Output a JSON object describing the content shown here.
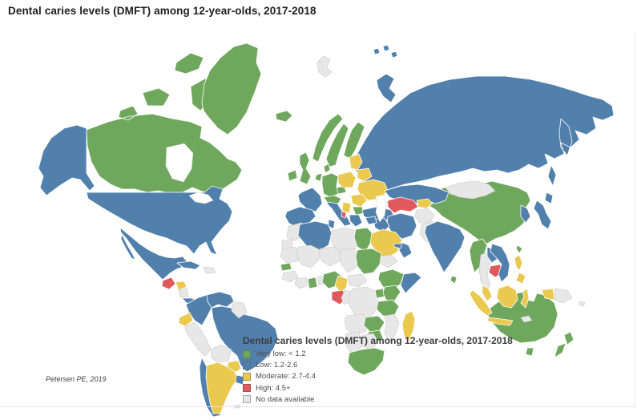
{
  "title": "Dental caries levels (DMFT) among 12-year-olds, 2017-2018",
  "attribution": "Petersen PE, 2019",
  "legend": {
    "title": "Dental caries levels (DMFT) among 12-year-olds, 2017-2018",
    "items": [
      {
        "id": "very_low",
        "label": "Very low: < 1.2",
        "color": "#6FA85C"
      },
      {
        "id": "low",
        "label": "Low: 1.2-2.6",
        "color": "#5280AC"
      },
      {
        "id": "moderate",
        "label": "Moderate: 2.7-4.4",
        "color": "#EAC94E"
      },
      {
        "id": "high",
        "label": "High: 4.5+",
        "color": "#E0575C"
      },
      {
        "id": "no_data",
        "label": "No data available",
        "color": "#E7E7E7"
      }
    ]
  },
  "map": {
    "ocean_color": "#FFFFFF",
    "regions": [
      {
        "id": "russia",
        "name": "Russia",
        "category": "low"
      },
      {
        "id": "canada",
        "name": "Canada",
        "category": "very_low"
      },
      {
        "id": "greenland",
        "name": "Greenland",
        "category": "very_low"
      },
      {
        "id": "usa",
        "name": "United States",
        "category": "low"
      },
      {
        "id": "china",
        "name": "China",
        "category": "very_low"
      },
      {
        "id": "brazil",
        "name": "Brazil",
        "category": "low"
      },
      {
        "id": "australia",
        "name": "Australia",
        "category": "very_low"
      },
      {
        "id": "mexico",
        "name": "Mexico",
        "category": "low"
      },
      {
        "id": "guatemala",
        "name": "Guatemala",
        "category": "high"
      },
      {
        "id": "honduras",
        "name": "Honduras",
        "category": "moderate"
      },
      {
        "id": "nicaragua",
        "name": "Nicaragua",
        "category": "no_data"
      },
      {
        "id": "panama-costa-rica",
        "name": "Costa Rica / Panama",
        "category": "low"
      },
      {
        "id": "cuba",
        "name": "Cuba",
        "category": "low"
      },
      {
        "id": "hispaniola",
        "name": "Haiti / Dominican Republic",
        "category": "no_data"
      },
      {
        "id": "colombia",
        "name": "Colombia",
        "category": "low"
      },
      {
        "id": "venezuela",
        "name": "Venezuela",
        "category": "low"
      },
      {
        "id": "guyanas",
        "name": "Guyana / Suriname",
        "category": "no_data"
      },
      {
        "id": "ecuador",
        "name": "Ecuador",
        "category": "moderate"
      },
      {
        "id": "peru",
        "name": "Peru",
        "category": "no_data"
      },
      {
        "id": "bolivia",
        "name": "Bolivia",
        "category": "no_data"
      },
      {
        "id": "paraguay",
        "name": "Paraguay",
        "category": "moderate"
      },
      {
        "id": "chile",
        "name": "Chile",
        "category": "low"
      },
      {
        "id": "argentina",
        "name": "Argentina",
        "category": "moderate"
      },
      {
        "id": "uruguay",
        "name": "Uruguay",
        "category": "low"
      },
      {
        "id": "falkland",
        "name": "Falkland Islands",
        "category": "no_data"
      },
      {
        "id": "iceland",
        "name": "Iceland",
        "category": "very_low"
      },
      {
        "id": "ireland",
        "name": "Ireland",
        "category": "very_low"
      },
      {
        "id": "uk",
        "name": "United Kingdom",
        "category": "very_low"
      },
      {
        "id": "norway",
        "name": "Norway",
        "category": "very_low"
      },
      {
        "id": "sweden",
        "name": "Sweden",
        "category": "very_low"
      },
      {
        "id": "finland",
        "name": "Finland",
        "category": "very_low"
      },
      {
        "id": "denmark",
        "name": "Denmark",
        "category": "very_low"
      },
      {
        "id": "germany",
        "name": "Germany",
        "category": "very_low"
      },
      {
        "id": "benelux",
        "name": "Netherlands / Belgium",
        "category": "very_low"
      },
      {
        "id": "france",
        "name": "France",
        "category": "low"
      },
      {
        "id": "iberia",
        "name": "Spain / Portugal",
        "category": "low"
      },
      {
        "id": "italy",
        "name": "Italy",
        "category": "low"
      },
      {
        "id": "swiss-austria",
        "name": "Switzerland / Austria",
        "category": "very_low"
      },
      {
        "id": "czechia",
        "name": "Czechia",
        "category": "very_low"
      },
      {
        "id": "poland",
        "name": "Poland",
        "category": "moderate"
      },
      {
        "id": "baltics",
        "name": "Baltic States",
        "category": "moderate"
      },
      {
        "id": "belarus",
        "name": "Belarus",
        "category": "moderate"
      },
      {
        "id": "ukraine",
        "name": "Ukraine",
        "category": "moderate"
      },
      {
        "id": "romania",
        "name": "Romania / Moldova",
        "category": "moderate"
      },
      {
        "id": "balkans",
        "name": "Hungary / Serbia",
        "category": "moderate"
      },
      {
        "id": "bulgaria",
        "name": "Bulgaria",
        "category": "very_low"
      },
      {
        "id": "albania",
        "name": "Albania",
        "category": "high"
      },
      {
        "id": "greece",
        "name": "Greece",
        "category": "low"
      },
      {
        "id": "turkey",
        "name": "Turkey",
        "category": "low"
      },
      {
        "id": "caucasus",
        "name": "Georgia / Armenia",
        "category": "very_low"
      },
      {
        "id": "svalbard",
        "name": "Svalbard",
        "category": "no_data"
      },
      {
        "id": "kazakhstan",
        "name": "Kazakhstan",
        "category": "low"
      },
      {
        "id": "uzbek-turkmen",
        "name": "Turkmenistan / Uzbekistan",
        "category": "high"
      },
      {
        "id": "kyrgyz-tajik",
        "name": "Kyrgyzstan / Tajikistan",
        "category": "moderate"
      },
      {
        "id": "iran",
        "name": "Iran",
        "category": "low"
      },
      {
        "id": "afghanistan",
        "name": "Afghanistan",
        "category": "no_data"
      },
      {
        "id": "pakistan",
        "name": "Pakistan",
        "category": "no_data"
      },
      {
        "id": "iraq",
        "name": "Iraq",
        "category": "low"
      },
      {
        "id": "syria",
        "name": "Syria",
        "category": "low"
      },
      {
        "id": "saudi",
        "name": "Saudi Arabia",
        "category": "moderate"
      },
      {
        "id": "yemen",
        "name": "Yemen",
        "category": "no_data"
      },
      {
        "id": "oman",
        "name": "Oman",
        "category": "low"
      },
      {
        "id": "uae",
        "name": "United Arab Emirates",
        "category": "low"
      },
      {
        "id": "morocco",
        "name": "Morocco",
        "category": "no_data"
      },
      {
        "id": "western-sahara",
        "name": "Western Sahara",
        "category": "no_data"
      },
      {
        "id": "algeria",
        "name": "Algeria",
        "category": "low"
      },
      {
        "id": "tunisia",
        "name": "Tunisia",
        "category": "low"
      },
      {
        "id": "libya",
        "name": "Libya",
        "category": "no_data"
      },
      {
        "id": "egypt",
        "name": "Egypt",
        "category": "very_low"
      },
      {
        "id": "mauritania",
        "name": "Mauritania",
        "category": "no_data"
      },
      {
        "id": "mali",
        "name": "Mali",
        "category": "no_data"
      },
      {
        "id": "niger",
        "name": "Niger",
        "category": "no_data"
      },
      {
        "id": "chad",
        "name": "Chad",
        "category": "no_data"
      },
      {
        "id": "sudan",
        "name": "Sudan",
        "category": "very_low"
      },
      {
        "id": "ethiopia",
        "name": "Ethiopia",
        "category": "very_low"
      },
      {
        "id": "somalia",
        "name": "Somalia",
        "category": "low"
      },
      {
        "id": "senegal",
        "name": "Senegal",
        "category": "very_low"
      },
      {
        "id": "guinea",
        "name": "Guinea",
        "category": "no_data"
      },
      {
        "id": "ivory-coast",
        "name": "Côte d'Ivoire",
        "category": "no_data"
      },
      {
        "id": "ghana",
        "name": "Ghana",
        "category": "very_low"
      },
      {
        "id": "benin-togo",
        "name": "Benin / Togo",
        "category": "no_data"
      },
      {
        "id": "nigeria",
        "name": "Nigeria",
        "category": "very_low"
      },
      {
        "id": "cameroon",
        "name": "Cameroon",
        "category": "moderate"
      },
      {
        "id": "car",
        "name": "Central African Republic",
        "category": "no_data"
      },
      {
        "id": "gabon",
        "name": "Gabon / Equatorial Guinea",
        "category": "high"
      },
      {
        "id": "congo",
        "name": "Congo",
        "category": "no_data"
      },
      {
        "id": "drc",
        "name": "DR Congo",
        "category": "no_data"
      },
      {
        "id": "uganda",
        "name": "Uganda",
        "category": "very_low"
      },
      {
        "id": "kenya",
        "name": "Kenya",
        "category": "very_low"
      },
      {
        "id": "tanzania",
        "name": "Tanzania",
        "category": "very_low"
      },
      {
        "id": "angola",
        "name": "Angola",
        "category": "no_data"
      },
      {
        "id": "zambia",
        "name": "Zambia",
        "category": "very_low"
      },
      {
        "id": "mozambique",
        "name": "Mozambique",
        "category": "no_data"
      },
      {
        "id": "zimbabwe",
        "name": "Zimbabwe",
        "category": "very_low"
      },
      {
        "id": "namibia",
        "name": "Namibia",
        "category": "no_data"
      },
      {
        "id": "botswana",
        "name": "Botswana",
        "category": "no_data"
      },
      {
        "id": "south-africa",
        "name": "South Africa",
        "category": "very_low"
      },
      {
        "id": "madagascar",
        "name": "Madagascar",
        "category": "moderate"
      },
      {
        "id": "india",
        "name": "India",
        "category": "low"
      },
      {
        "id": "sri-lanka",
        "name": "Sri Lanka",
        "category": "very_low"
      },
      {
        "id": "mongolia",
        "name": "Mongolia",
        "category": "no_data"
      },
      {
        "id": "korea",
        "name": "Korea",
        "category": "low"
      },
      {
        "id": "japan",
        "name": "Japan",
        "category": "low"
      },
      {
        "id": "taiwan",
        "name": "Taiwan",
        "category": "very_low"
      },
      {
        "id": "myanmar",
        "name": "Myanmar",
        "category": "very_low"
      },
      {
        "id": "thailand",
        "name": "Thailand",
        "category": "no_data"
      },
      {
        "id": "laos",
        "name": "Laos",
        "category": "low"
      },
      {
        "id": "cambodia",
        "name": "Cambodia",
        "category": "high"
      },
      {
        "id": "vietnam",
        "name": "Vietnam",
        "category": "low"
      },
      {
        "id": "malaysia",
        "name": "Malaysia",
        "category": "moderate"
      },
      {
        "id": "indonesia",
        "name": "Indonesia",
        "category": "moderate"
      },
      {
        "id": "timor",
        "name": "Timor",
        "category": "no_data"
      },
      {
        "id": "png",
        "name": "Papua New Guinea",
        "category": "no_data"
      },
      {
        "id": "philippines",
        "name": "Philippines",
        "category": "moderate"
      },
      {
        "id": "solomon",
        "name": "Solomon Islands",
        "category": "no_data"
      },
      {
        "id": "new-zealand",
        "name": "New Zealand",
        "category": "very_low"
      }
    ]
  }
}
